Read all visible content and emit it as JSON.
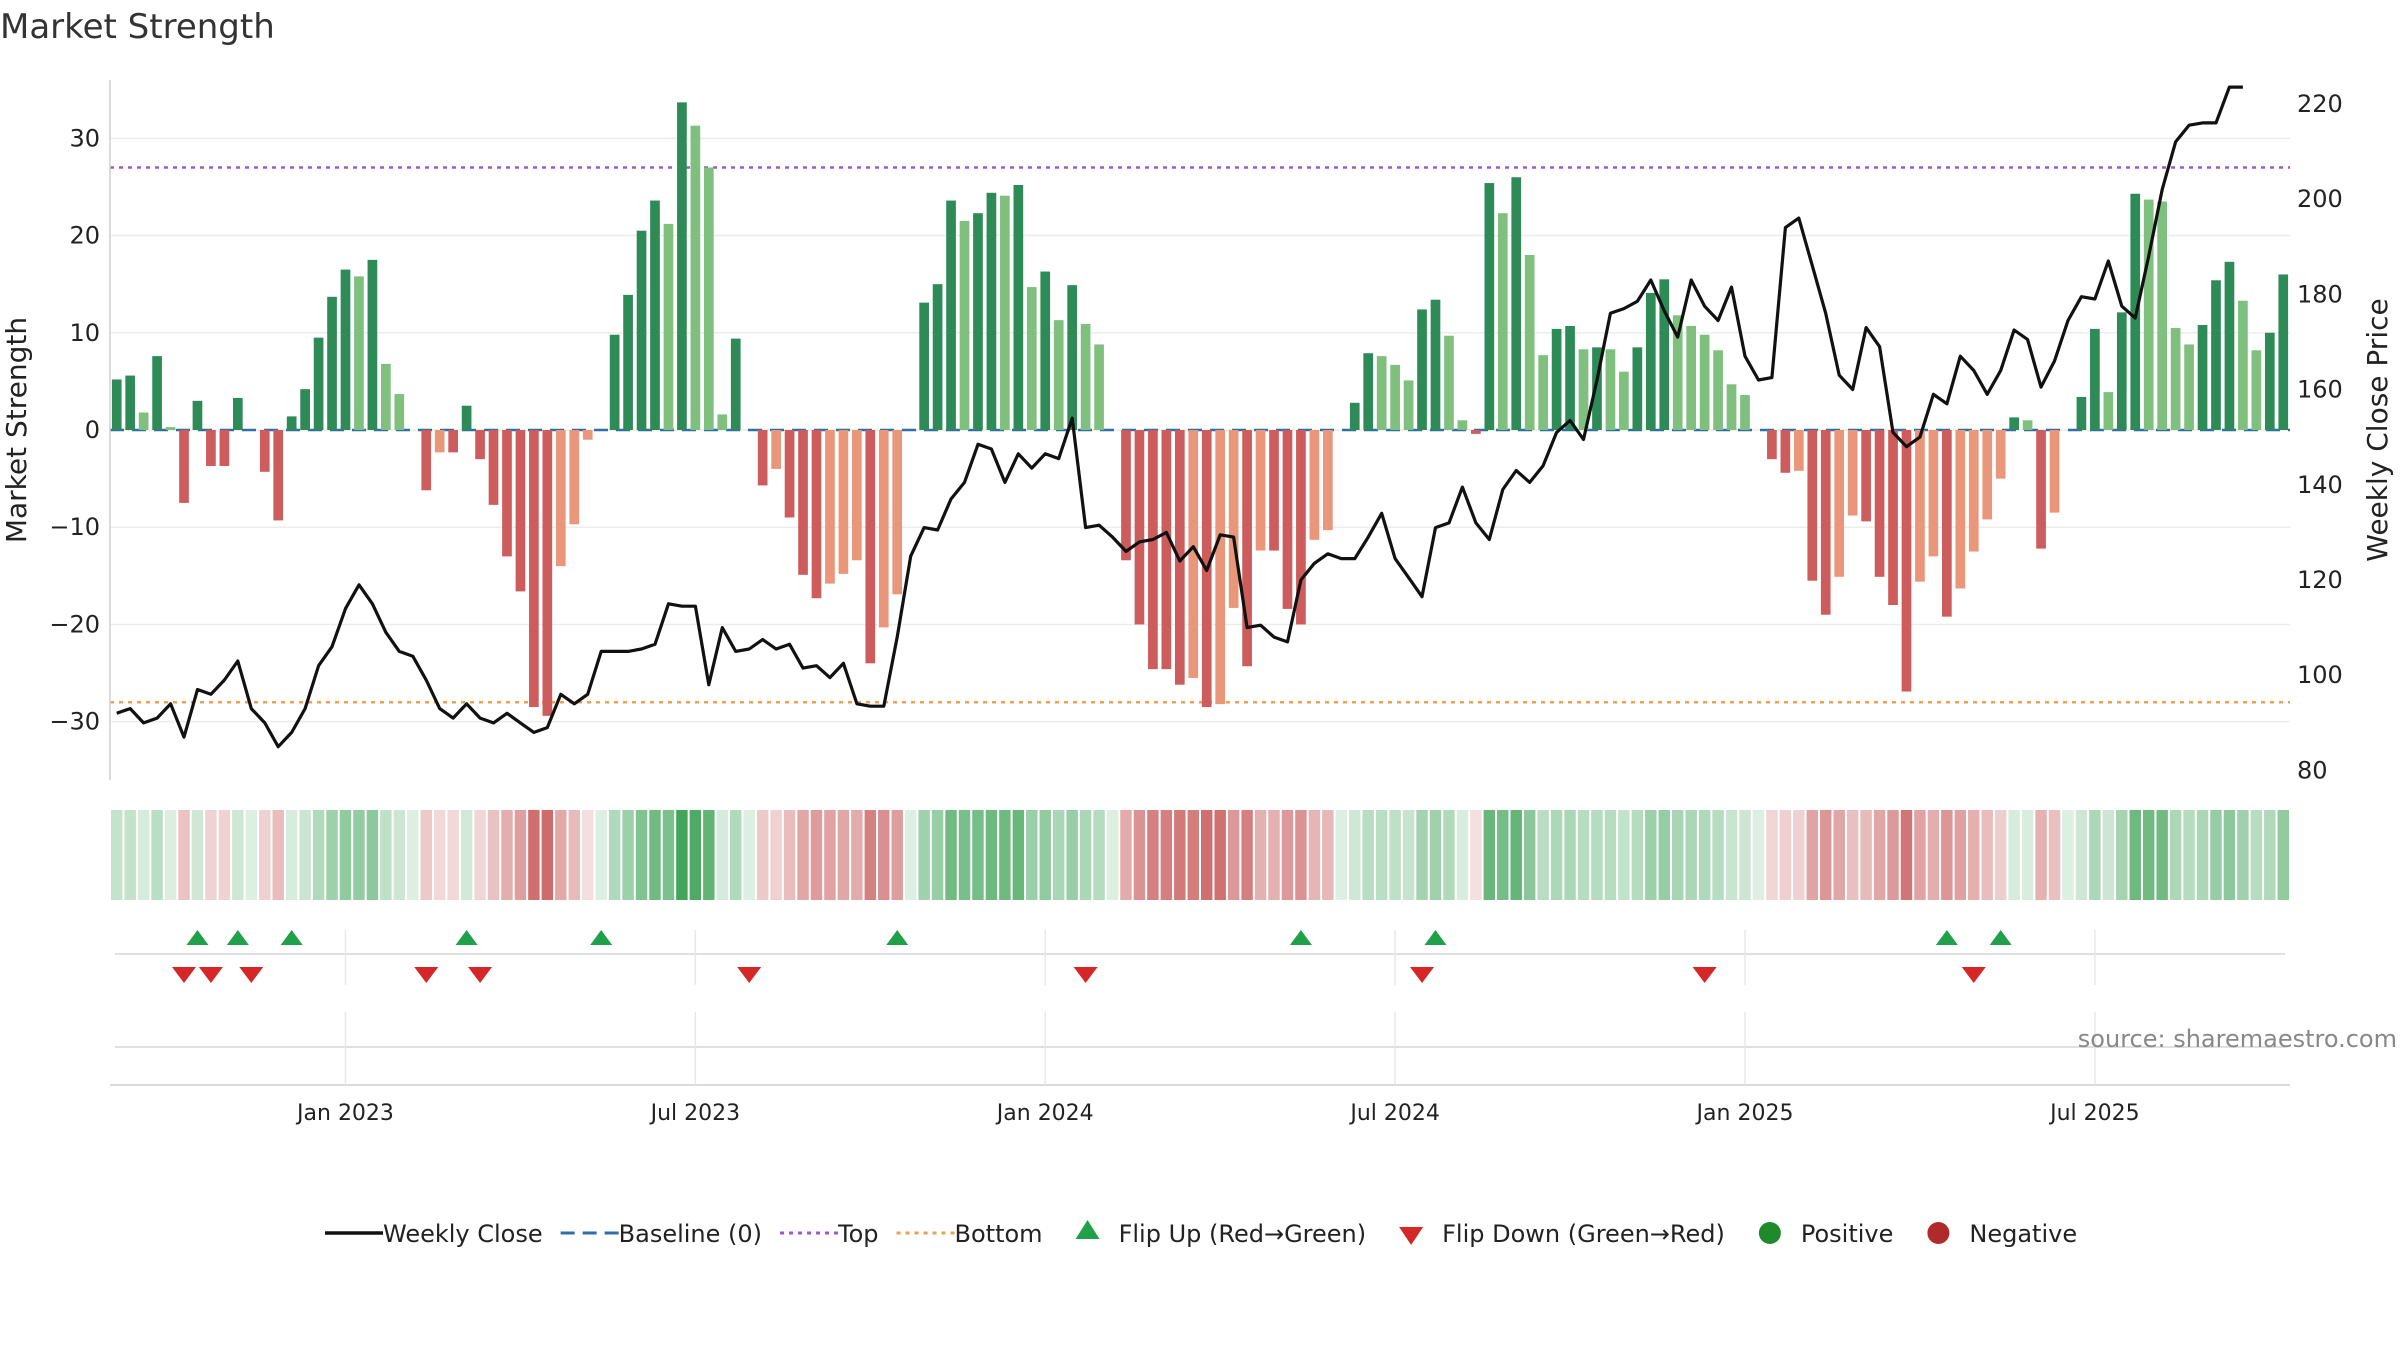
{
  "chart_data": {
    "type": "bar",
    "title": "Market Strength",
    "ylabel": "Market Strength",
    "y2label": "Weekly Close Price",
    "ylim": [
      -36,
      36
    ],
    "y2lim": [
      78,
      225
    ],
    "yticks": [
      30,
      20,
      10,
      0,
      -10,
      -20,
      -30
    ],
    "y2ticks": [
      220,
      200,
      180,
      160,
      140,
      120,
      100,
      80
    ],
    "reference_lines": {
      "top": 27,
      "baseline": 0,
      "bottom": -28
    },
    "x_labels": [
      {
        "label": "Jan 2023",
        "index": 17
      },
      {
        "label": "Jul 2023",
        "index": 43
      },
      {
        "label": "Jan 2024",
        "index": 69
      },
      {
        "label": "Jul 2024",
        "index": 95
      },
      {
        "label": "Jan 2025",
        "index": 121
      },
      {
        "label": "Jul 2025",
        "index": 147
      }
    ],
    "strength": [
      5.2,
      5.6,
      1.8,
      7.6,
      0.3,
      -7.5,
      3.0,
      -3.7,
      -3.7,
      3.3,
      0,
      -4.3,
      -9.3,
      1.4,
      4.2,
      9.5,
      13.7,
      16.5,
      15.8,
      17.5,
      6.8,
      3.7,
      0,
      -6.2,
      -2.3,
      -2.3,
      2.5,
      -3.0,
      -7.7,
      -13.0,
      -16.6,
      -28.5,
      -29.4,
      -14.0,
      -9.7,
      -1.0,
      0,
      9.8,
      13.9,
      20.5,
      23.6,
      21.2,
      33.7,
      31.3,
      27.0,
      1.6,
      9.4,
      0,
      -5.7,
      -4.0,
      -9.0,
      -14.9,
      -17.3,
      -15.8,
      -14.8,
      -13.4,
      -24.0,
      -20.3,
      -16.9,
      0,
      13.1,
      15.0,
      23.6,
      21.5,
      22.3,
      24.4,
      24.1,
      25.2,
      14.7,
      16.3,
      11.3,
      14.9,
      10.9,
      8.8,
      0,
      -13.4,
      -20.0,
      -24.6,
      -24.6,
      -26.2,
      -25.5,
      -28.5,
      -28.2,
      -18.3,
      -24.3,
      -12.4,
      -12.4,
      -18.4,
      -20.0,
      -11.3,
      -10.3,
      0,
      2.8,
      7.9,
      7.6,
      6.7,
      5.1,
      12.4,
      13.4,
      9.7,
      1.0,
      -0.4,
      25.4,
      22.3,
      26.0,
      18.0,
      7.7,
      10.4,
      10.7,
      8.3,
      8.5,
      8.3,
      6.0,
      8.5,
      14.1,
      15.5,
      11.8,
      10.7,
      9.8,
      8.2,
      4.7,
      3.6,
      0,
      -3.0,
      -4.4,
      -4.2,
      -15.5,
      -19.0,
      -15.1,
      -8.8,
      -9.4,
      -15.1,
      -18.0,
      -26.9,
      -15.6,
      -13.0,
      -19.2,
      -16.3,
      -12.5,
      -9.2,
      -5.0,
      1.3,
      1.0,
      -12.2,
      -8.5,
      0,
      3.4,
      10.4,
      3.9,
      12.1,
      24.3,
      23.7,
      23.5,
      10.5,
      8.8,
      10.8,
      15.4,
      17.3,
      13.3,
      8.2,
      10.0,
      16.0
    ],
    "weekly_close": [
      92,
      93,
      90,
      91,
      94,
      87,
      97,
      96,
      99,
      103,
      93,
      90,
      85,
      88,
      93,
      102,
      106,
      114,
      119,
      115,
      109,
      105,
      104,
      99,
      93,
      91,
      94,
      91,
      90,
      92,
      90,
      88,
      89,
      96,
      94,
      96,
      105,
      105,
      105,
      105.5,
      106.5,
      115,
      114.5,
      114.5,
      98,
      110,
      105,
      105.5,
      107.5,
      105.5,
      106.5,
      101.5,
      102,
      99.5,
      102.5,
      94,
      93.5,
      93.5,
      108,
      125,
      131,
      130.5,
      137,
      140.5,
      148.5,
      147.5,
      140.5,
      146.5,
      143.5,
      146.5,
      145.5,
      154,
      131,
      131.5,
      129,
      126,
      128,
      128.5,
      130,
      124,
      127,
      122,
      129.5,
      129,
      110,
      110.5,
      108,
      107,
      120,
      123.5,
      125.5,
      124.5,
      124.5,
      129,
      134,
      124.5,
      120.5,
      116.5,
      131,
      132,
      139.5,
      132,
      128.5,
      139,
      143,
      140.5,
      144,
      151,
      153.5,
      149.5,
      162,
      176,
      177,
      178.5,
      183,
      176.5,
      171,
      183,
      177.5,
      174.5,
      181.5,
      167,
      162,
      162.5,
      194,
      196,
      186,
      176,
      163,
      160,
      173,
      169,
      151,
      148,
      150,
      159,
      157,
      167,
      164,
      159,
      164,
      172.5,
      170.5,
      160.5,
      166,
      174.5,
      179.5,
      179,
      187,
      177.5,
      175,
      188,
      202,
      212,
      215.5,
      216,
      216,
      223.5,
      223.5
    ],
    "flip_up_indices": [
      6,
      9,
      13,
      26,
      36,
      58,
      88,
      98,
      136,
      140
    ],
    "flip_down_indices": [
      5,
      7,
      10,
      23,
      27,
      47,
      72,
      97,
      118,
      138
    ],
    "legend": [
      {
        "label": "Weekly Close",
        "marker": "solid-line",
        "color": "#111111"
      },
      {
        "label": "Baseline (0)",
        "marker": "dashed-line",
        "color": "#2f6ea8"
      },
      {
        "label": "Top",
        "marker": "dotted-line",
        "color": "#9b59d0"
      },
      {
        "label": "Bottom",
        "marker": "dotted-line",
        "color": "#f0a050"
      },
      {
        "label": "Flip Up (Red→Green)",
        "marker": "triangle-up",
        "color": "#21a04a"
      },
      {
        "label": "Flip Down (Green→Red)",
        "marker": "triangle-down",
        "color": "#d62728"
      },
      {
        "label": "Positive",
        "marker": "circle",
        "color": "#1e8a2a"
      },
      {
        "label": "Negative",
        "marker": "circle",
        "color": "#b02a2a"
      }
    ],
    "source": "source: sharemaestro.com"
  },
  "colors": {
    "pos_strong": "#2e8b57",
    "pos_weak": "#7fc07f",
    "neg_strong": "#cd5c5c",
    "neg_weak": "#e9967a",
    "heat_pos": "#41a45a",
    "heat_neg": "#c85a5a",
    "price_line": "#111111",
    "top_line": "#9b59d0",
    "bottom_line": "#f0a050",
    "baseline": "#2f6ea8",
    "flip_up": "#21a04a",
    "flip_down": "#d62728",
    "grid": "#ececec"
  }
}
